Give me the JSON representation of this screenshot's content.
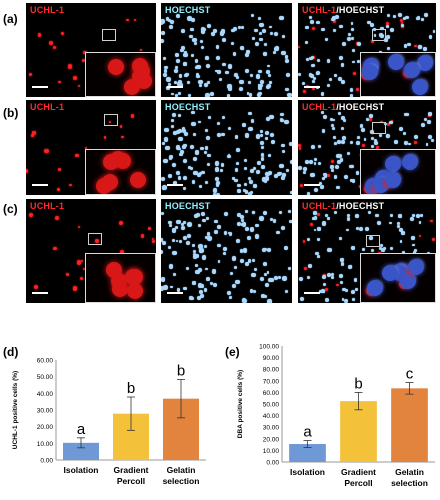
{
  "figure": {
    "rows": [
      {
        "label": "(a)",
        "panels": [
          "UCHL-1",
          "HOECHST",
          "UCHL-1/HOECHST"
        ]
      },
      {
        "label": "(b)",
        "panels": [
          "UCHL-1",
          "HOECHST",
          "UCHL-1/HOECHST"
        ]
      },
      {
        "label": "(c)",
        "panels": [
          "UCHL-1",
          "HOECHST",
          "UCHL-1/HOECHST"
        ]
      }
    ],
    "panel_titles": {
      "red": "UCHL-1",
      "blue": "HOECHST",
      "merge_a": "UCHL-1",
      "merge_b": "/HOECHST"
    },
    "colors": {
      "red_stain": "#ff2020",
      "blue_stain": "#a9d8ff",
      "background": "#000000"
    }
  },
  "chart_data": [
    {
      "type": "bar",
      "panel_label": "(d)",
      "categories": [
        "Isolation",
        "Gradient Percoll",
        "Gelatin selection"
      ],
      "category_lines": [
        [
          "Isolation"
        ],
        [
          "Gradient",
          "Percoll"
        ],
        [
          "Gelatin",
          "selection"
        ]
      ],
      "values": [
        10.3,
        27.8,
        36.8
      ],
      "errors": [
        3.0,
        10.0,
        11.5
      ],
      "significance": [
        "a",
        "b",
        "b"
      ],
      "colors": [
        "#6f98d6",
        "#f3c13a",
        "#e2843e"
      ],
      "ylabel": "UCHL-1 positive cells (%)",
      "ylim": [
        0,
        60
      ],
      "yticks": [
        "0.00",
        "10.00",
        "20.00",
        "30.00",
        "40.00",
        "50.00",
        "60.00"
      ]
    },
    {
      "type": "bar",
      "panel_label": "(e)",
      "categories": [
        "Isolation",
        "Gradient Percoll",
        "Gelatin selection"
      ],
      "category_lines": [
        [
          "Isolation"
        ],
        [
          "Gradient",
          "Percoll"
        ],
        [
          "Gelatin",
          "selection"
        ]
      ],
      "values": [
        15.5,
        52.5,
        63.5
      ],
      "errors": [
        3.0,
        7.5,
        5.0
      ],
      "significance": [
        "a",
        "b",
        "c"
      ],
      "colors": [
        "#6f98d6",
        "#f3c13a",
        "#e2843e"
      ],
      "ylabel": "DBA positive cells (%)",
      "ylim": [
        0,
        100
      ],
      "yticks": [
        "0.00",
        "10.00",
        "20.00",
        "30.00",
        "40.00",
        "50.00",
        "60.00",
        "70.00",
        "80.00",
        "90.00",
        "100.00"
      ]
    }
  ]
}
